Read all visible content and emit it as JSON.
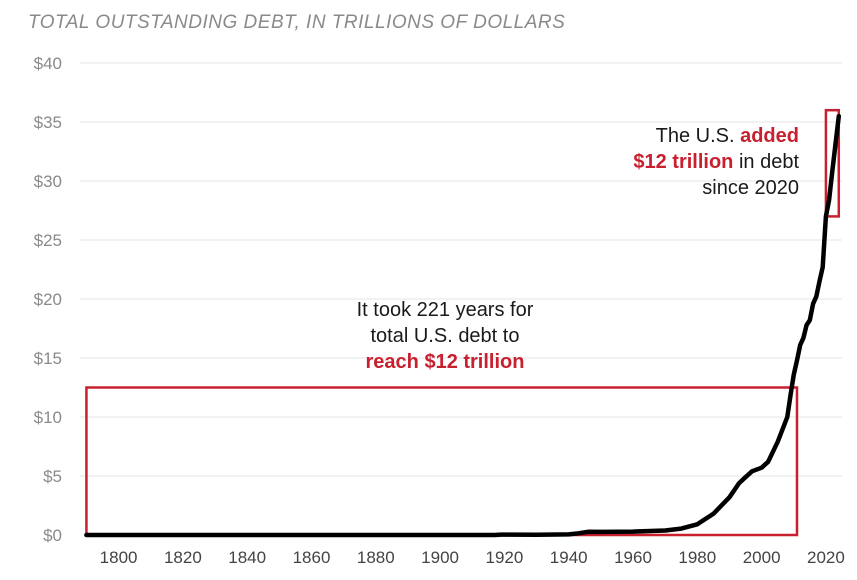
{
  "chart_data": {
    "type": "line",
    "title": "TOTAL OUTSTANDING DEBT, IN TRILLIONS OF DOLLARS",
    "xlabel": "",
    "ylabel": "",
    "xlim": [
      1788,
      2025
    ],
    "ylim": [
      0,
      40
    ],
    "grid": true,
    "xticks": [
      1800,
      1820,
      1840,
      1860,
      1880,
      1900,
      1920,
      1940,
      1960,
      1980,
      2000,
      2020
    ],
    "xtick_labels": [
      "1800",
      "1820",
      "1840",
      "1860",
      "1880",
      "1900",
      "1920",
      "1940",
      "1960",
      "1980",
      "2000",
      "2020"
    ],
    "yticks": [
      0,
      5,
      10,
      15,
      20,
      25,
      30,
      35,
      40
    ],
    "ytick_labels": [
      "$0",
      "$5",
      "$10",
      "$15",
      "$20",
      "$25",
      "$30",
      "$35",
      "$40"
    ],
    "line_color": "#000000",
    "highlight_color": "#c8202f",
    "series": [
      {
        "x": [
          1790,
          1800,
          1820,
          1840,
          1860,
          1880,
          1900,
          1917,
          1919,
          1930,
          1940,
          1943,
          1946,
          1950,
          1960,
          1970,
          1975,
          1980,
          1985,
          1990,
          1993,
          1995,
          1997,
          2000,
          2002,
          2005,
          2008,
          2009,
          2010,
          2011,
          2012,
          2013,
          2014,
          2015,
          2016,
          2017,
          2018,
          2019,
          2020,
          2021,
          2022,
          2023,
          2024
        ],
        "y": [
          0,
          0,
          0,
          0,
          0,
          0,
          0,
          0,
          0.03,
          0.02,
          0.05,
          0.14,
          0.27,
          0.26,
          0.29,
          0.38,
          0.54,
          0.91,
          1.8,
          3.2,
          4.4,
          4.9,
          5.4,
          5.7,
          6.2,
          7.9,
          10.0,
          11.9,
          13.6,
          14.8,
          16.1,
          16.7,
          17.8,
          18.2,
          19.6,
          20.2,
          21.5,
          22.7,
          27.0,
          28.4,
          30.9,
          33.2,
          35.5
        ]
      }
    ],
    "highlight_boxes": [
      {
        "x": [
          1790,
          2011
        ],
        "y": [
          0,
          12.5
        ]
      },
      {
        "x": [
          2020,
          2024
        ],
        "y": [
          27,
          36
        ]
      }
    ],
    "annotations": [
      {
        "lines": [
          [
            {
              "text": "It took 221 years for",
              "bold": false
            }
          ],
          [
            {
              "text": "total U.S. debt to",
              "bold": false
            }
          ],
          [
            {
              "text": "reach $12 trillion",
              "bold": true
            }
          ]
        ]
      },
      {
        "lines": [
          [
            {
              "text": "The U.S. ",
              "bold": false
            },
            {
              "text": "added",
              "bold": true
            }
          ],
          [
            {
              "text": "$12 trillion",
              "bold": true
            },
            {
              "text": " in debt",
              "bold": false
            }
          ],
          [
            {
              "text": "since 2020",
              "bold": false
            }
          ]
        ]
      }
    ]
  }
}
